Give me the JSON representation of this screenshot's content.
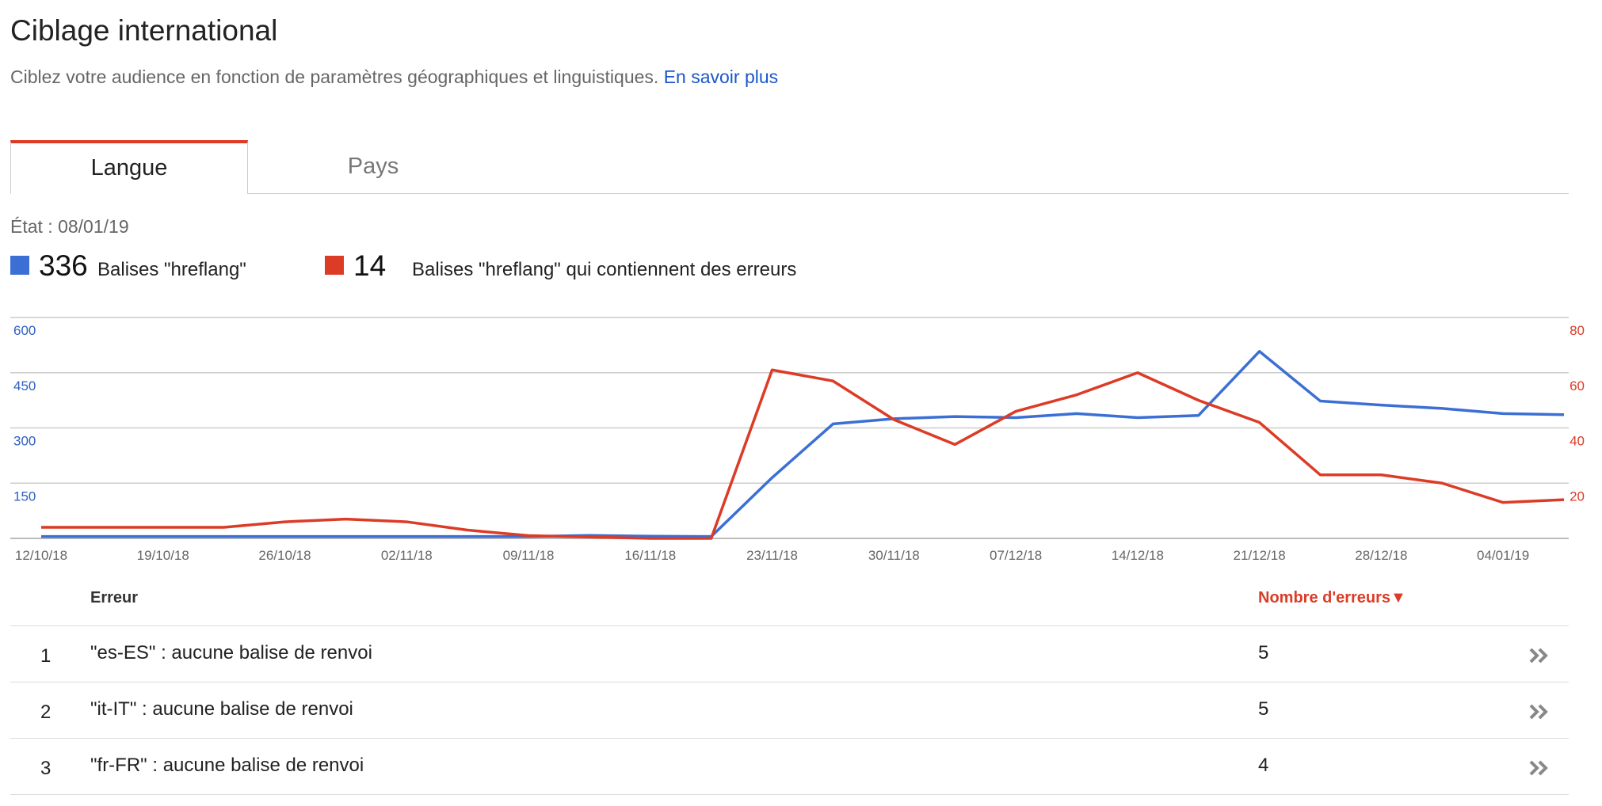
{
  "header": {
    "title": "Ciblage international",
    "subtitle": "Ciblez votre audience en fonction de paramètres géographiques et linguistiques.",
    "link": "En savoir plus"
  },
  "tabs": [
    "Langue",
    "Pays"
  ],
  "status": "État : 08/01/19",
  "summary": [
    {
      "value": 336,
      "label": "Balises \"hreflang\"",
      "color": "#3b6fd4"
    },
    {
      "value": 14,
      "label": "Balises \"hreflang\" qui contiennent des erreurs",
      "color": "#dc3b26"
    }
  ],
  "chart_data": {
    "type": "line",
    "categories": [
      "12/10/18",
      null,
      "19/10/18",
      null,
      "26/10/18",
      null,
      "02/11/18",
      null,
      "09/11/18",
      null,
      "16/11/18",
      null,
      "23/11/18",
      null,
      "30/11/18",
      null,
      "07/12/18",
      null,
      "14/12/18",
      null,
      "21/12/18",
      null,
      "28/12/18",
      null,
      "04/01/19",
      null
    ],
    "series": [
      {
        "name": "Balises \"hreflang\"",
        "color": "#3b6fd4",
        "values": [
          5,
          5,
          5,
          5,
          5,
          5,
          5,
          5,
          5,
          8,
          6,
          5,
          165,
          311,
          325,
          331,
          328,
          339,
          328,
          334,
          508,
          373,
          362,
          353,
          339,
          336
        ]
      },
      {
        "name": "Balises \"hreflang\" qui contiennent des erreurs",
        "color": "#dc3b26",
        "axis": "y2",
        "values": [
          4,
          4,
          4,
          4,
          6,
          7,
          6,
          3,
          1,
          0.5,
          0,
          0,
          61,
          57,
          43,
          34,
          46,
          52,
          60,
          50,
          42,
          23,
          23,
          20,
          13,
          14
        ]
      }
    ],
    "ylim": [
      0,
      600
    ],
    "yticks": [
      150,
      300,
      450,
      600
    ],
    "y2lim": [
      0,
      80
    ],
    "y2ticks": [
      20,
      40,
      60,
      80
    ],
    "grid": true
  },
  "table": {
    "header": [
      "Erreur",
      "Nombre d'erreurs▼"
    ],
    "rows": [
      [
        1,
        "\"es-ES\" : aucune balise de renvoi",
        5
      ],
      [
        2,
        "\"it-IT\" : aucune balise de renvoi",
        5
      ],
      [
        3,
        "\"fr-FR\" : aucune balise de renvoi",
        4
      ]
    ]
  }
}
